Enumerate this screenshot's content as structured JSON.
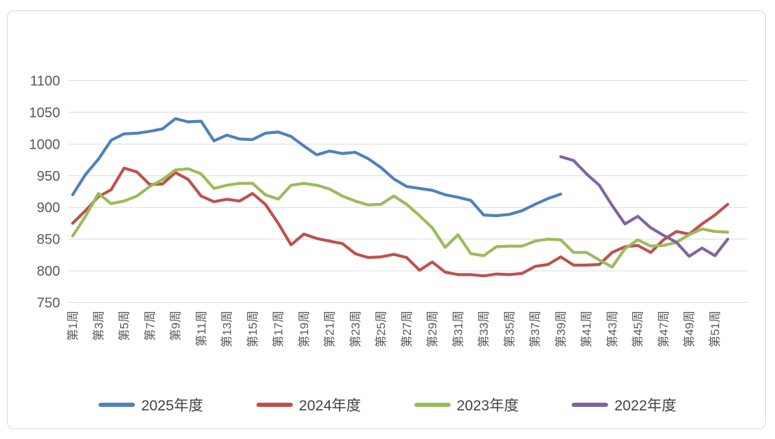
{
  "chart_data": {
    "type": "line",
    "title": "",
    "grid": true,
    "legend_position": "bottom",
    "x_axis": {
      "categories_total": 52,
      "tick_labels": [
        "第1周",
        "第3周",
        "第5周",
        "第7周",
        "第9周",
        "第11周",
        "第13周",
        "第15周",
        "第17周",
        "第19周",
        "第21周",
        "第23周",
        "第25周",
        "第27周",
        "第29周",
        "第31周",
        "第33周",
        "第35周",
        "第37周",
        "第39周",
        "第41周",
        "第43周",
        "第45周",
        "第47周",
        "第49周",
        "第51周"
      ],
      "tick_label_weeks": [
        1,
        3,
        5,
        7,
        9,
        11,
        13,
        15,
        17,
        19,
        21,
        23,
        25,
        27,
        29,
        31,
        33,
        35,
        37,
        39,
        41,
        43,
        45,
        47,
        49,
        51
      ]
    },
    "y_axis": {
      "min": 750,
      "max": 1100,
      "step": 50,
      "tick_labels": [
        "750",
        "800",
        "850",
        "900",
        "950",
        "1000",
        "1050",
        "1100"
      ]
    },
    "series": [
      {
        "name": "2025年度",
        "color": "#4F81BD",
        "start_week": 1,
        "values": [
          920,
          952,
          976,
          1006,
          1016,
          1017,
          1020,
          1024,
          1040,
          1035,
          1036,
          1005,
          1014,
          1008,
          1007,
          1017,
          1019,
          1012,
          997,
          983,
          989,
          985,
          987,
          977,
          963,
          945,
          933,
          930,
          927,
          920,
          916,
          911,
          888,
          887,
          889,
          895,
          905,
          914,
          921
        ]
      },
      {
        "name": "2024年度",
        "color": "#C0504D",
        "start_week": 1,
        "values": [
          875,
          895,
          917,
          928,
          962,
          956,
          936,
          937,
          955,
          944,
          918,
          909,
          913,
          910,
          922,
          905,
          875,
          841,
          858,
          851,
          847,
          843,
          827,
          821,
          822,
          826,
          821,
          801,
          814,
          798,
          794,
          794,
          792,
          795,
          794,
          796,
          807,
          810,
          822,
          809,
          809,
          810,
          829,
          838,
          840,
          829,
          849,
          862,
          858,
          874,
          888,
          905
        ]
      },
      {
        "name": "2023年度",
        "color": "#9BBB59",
        "start_week": 1,
        "values": [
          855,
          886,
          922,
          906,
          910,
          918,
          933,
          944,
          959,
          961,
          953,
          930,
          935,
          938,
          938,
          920,
          913,
          935,
          938,
          935,
          929,
          918,
          910,
          904,
          905,
          918,
          905,
          887,
          868,
          837,
          857,
          827,
          824,
          838,
          839,
          839,
          847,
          850,
          849,
          829,
          829,
          817,
          806,
          835,
          849,
          839,
          840,
          845,
          857,
          866,
          862,
          861
        ]
      },
      {
        "name": "2022年度",
        "color": "#8064A2",
        "start_week": 39,
        "values": [
          980,
          974,
          953,
          935,
          903,
          874,
          886,
          868,
          856,
          845,
          823,
          836,
          824,
          850
        ]
      }
    ]
  },
  "legend": {
    "items": [
      {
        "label": "2025年度",
        "color": "#4F81BD"
      },
      {
        "label": "2024年度",
        "color": "#C0504D"
      },
      {
        "label": "2023年度",
        "color": "#9BBB59"
      },
      {
        "label": "2022年度",
        "color": "#8064A2"
      }
    ]
  },
  "colors": {
    "gridline": "#d9d9d9",
    "axis_text": "#595959",
    "card_border": "#d8d8d8",
    "background": "#ffffff"
  }
}
